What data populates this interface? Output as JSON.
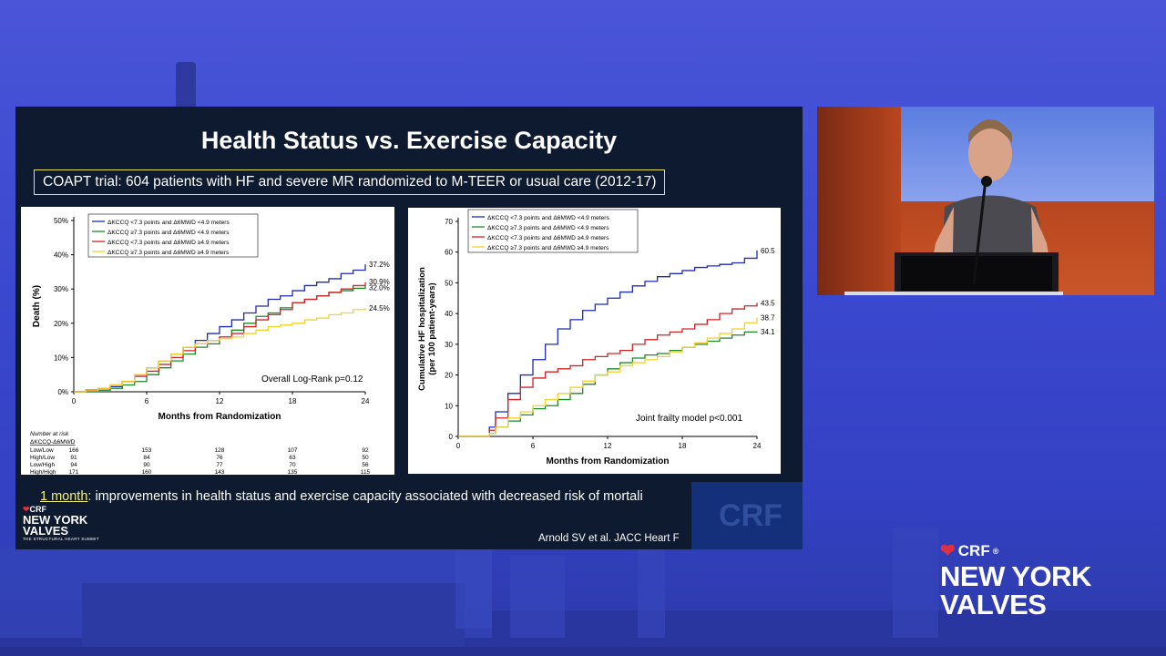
{
  "slide": {
    "title": "Health Status vs. Exercise Capacity",
    "subtitle": "COAPT trial: 604 patients with HF and severe MR randomized to M-TEER or usual care (2012-17)",
    "bottom_note_highlight": "1 month",
    "bottom_note_rest": ": improvements in health status and exercise capacity associated with decreased risk of mortali",
    "citation": "Arnold SV et al. JACC Heart F",
    "logo_crf": "CRF",
    "logo_name_line1": "NEW YORK",
    "logo_name_line2": "VALVES",
    "logo_tagline": "THE STRUCTURAL HEART SUMMIT",
    "watermark": "CRF"
  },
  "brand": {
    "crf": "CRF",
    "line1": "NEW YORK",
    "line2": "VALVES"
  },
  "colors": {
    "series": [
      "#1f2bb5",
      "#1e8a2a",
      "#d22424",
      "#f2d22e"
    ],
    "slide_bg": "#0e1a30",
    "accent_box": "#e3e35a"
  },
  "chart_data": [
    {
      "type": "line",
      "xlabel": "Months from Randomization",
      "ylabel": "Death (%)",
      "x_ticks": [
        0,
        6,
        12,
        18,
        24
      ],
      "y_ticks": [
        "0%",
        "10%",
        "20%",
        "30%",
        "40%",
        "50%"
      ],
      "xlim": [
        0,
        24
      ],
      "ylim": [
        0,
        50
      ],
      "annotation": "Overall Log-Rank p=0.12",
      "legend_position": "top-left",
      "series": [
        {
          "name": "ΔKCCQ <7.3 points and Δ6MWD <4.9 meters",
          "end_label": "37.2%",
          "points": [
            [
              0,
              0
            ],
            [
              1,
              0
            ],
            [
              2,
              0.5
            ],
            [
              3,
              1.5
            ],
            [
              4,
              3
            ],
            [
              5,
              5
            ],
            [
              6,
              7
            ],
            [
              7,
              9
            ],
            [
              8,
              11
            ],
            [
              9,
              13
            ],
            [
              10,
              15
            ],
            [
              11,
              17
            ],
            [
              12,
              19
            ],
            [
              13,
              21
            ],
            [
              14,
              23
            ],
            [
              15,
              25
            ],
            [
              16,
              27
            ],
            [
              17,
              28
            ],
            [
              18,
              29.5
            ],
            [
              19,
              31
            ],
            [
              20,
              32
            ],
            [
              21,
              33
            ],
            [
              22,
              34.5
            ],
            [
              23,
              35.5
            ],
            [
              24,
              37.2
            ]
          ]
        },
        {
          "name": "ΔKCCQ ≥7.3 points and Δ6MWD <4.9 meters",
          "end_label": "30.9%",
          "points": [
            [
              0,
              0
            ],
            [
              1,
              0
            ],
            [
              2,
              0.5
            ],
            [
              3,
              1
            ],
            [
              4,
              2
            ],
            [
              5,
              3
            ],
            [
              6,
              5
            ],
            [
              7,
              7
            ],
            [
              8,
              9
            ],
            [
              9,
              11
            ],
            [
              10,
              13
            ],
            [
              11,
              14
            ],
            [
              12,
              16
            ],
            [
              13,
              18
            ],
            [
              14,
              20
            ],
            [
              15,
              22
            ],
            [
              16,
              23
            ],
            [
              17,
              24.5
            ],
            [
              18,
              26
            ],
            [
              19,
              27
            ],
            [
              20,
              28
            ],
            [
              21,
              29
            ],
            [
              22,
              29.5
            ],
            [
              23,
              30.2
            ],
            [
              24,
              30.9
            ]
          ]
        },
        {
          "name": "ΔKCCQ <7.3 points and Δ6MWD ≥4.9 meters",
          "end_label": "32.0%",
          "points": [
            [
              0,
              0
            ],
            [
              1,
              0.5
            ],
            [
              2,
              1
            ],
            [
              3,
              2
            ],
            [
              4,
              3
            ],
            [
              5,
              4.5
            ],
            [
              6,
              6
            ],
            [
              7,
              8
            ],
            [
              8,
              10
            ],
            [
              9,
              12
            ],
            [
              10,
              14
            ],
            [
              11,
              15
            ],
            [
              12,
              16
            ],
            [
              13,
              17
            ],
            [
              14,
              19
            ],
            [
              15,
              21
            ],
            [
              16,
              22.5
            ],
            [
              17,
              24
            ],
            [
              18,
              26
            ],
            [
              19,
              27
            ],
            [
              20,
              28
            ],
            [
              21,
              29
            ],
            [
              22,
              30
            ],
            [
              23,
              31
            ],
            [
              24,
              32
            ]
          ]
        },
        {
          "name": "ΔKCCQ ≥7.3 points and Δ6MWD ≥4.9 meters",
          "end_label": "24.5%",
          "points": [
            [
              0,
              0
            ],
            [
              1,
              0.3
            ],
            [
              2,
              1
            ],
            [
              3,
              2
            ],
            [
              4,
              3
            ],
            [
              5,
              5
            ],
            [
              6,
              7
            ],
            [
              7,
              9
            ],
            [
              8,
              11
            ],
            [
              9,
              13
            ],
            [
              10,
              14
            ],
            [
              11,
              15
            ],
            [
              12,
              15.5
            ],
            [
              13,
              16
            ],
            [
              14,
              17
            ],
            [
              15,
              18
            ],
            [
              16,
              19
            ],
            [
              17,
              19.5
            ],
            [
              18,
              20
            ],
            [
              19,
              21
            ],
            [
              20,
              21.5
            ],
            [
              21,
              22.5
            ],
            [
              22,
              23
            ],
            [
              23,
              24
            ],
            [
              24,
              24.5
            ]
          ]
        }
      ],
      "risk_table": {
        "title": "Number at risk",
        "header": "ΔKCCQ-Δ6MWD",
        "rows": [
          {
            "label": "Low/Low",
            "values": [
              "166",
              "153",
              "128",
              "107",
              "92"
            ]
          },
          {
            "label": "High/Low",
            "values": [
              "91",
              "84",
              "76",
              "63",
              "50"
            ]
          },
          {
            "label": "Low/High",
            "values": [
              "94",
              "90",
              "77",
              "70",
              "56"
            ]
          },
          {
            "label": "High/High",
            "values": [
              "171",
              "160",
              "143",
              "135",
              "115"
            ]
          }
        ]
      }
    },
    {
      "type": "line",
      "xlabel": "Months from Randomization",
      "ylabel_line1": "Cumulative HF hospitalization",
      "ylabel_line2": "(per 100 patient-years)",
      "x_ticks": [
        0,
        6,
        12,
        18,
        24
      ],
      "y_ticks": [
        "0",
        "10",
        "20",
        "30",
        "40",
        "50",
        "60",
        "70"
      ],
      "xlim": [
        0,
        24
      ],
      "ylim": [
        0,
        70
      ],
      "annotation": "Joint frailty model p<0.001",
      "legend_position": "top-left",
      "series": [
        {
          "name": "ΔKCCQ <7.3 points and Δ6MWD <4.9 meters",
          "end_label": "60.5",
          "points": [
            [
              0,
              0
            ],
            [
              1,
              0
            ],
            [
              2,
              0
            ],
            [
              2.5,
              3
            ],
            [
              3,
              8
            ],
            [
              4,
              14
            ],
            [
              5,
              20
            ],
            [
              6,
              25
            ],
            [
              7,
              30
            ],
            [
              8,
              35
            ],
            [
              9,
              38
            ],
            [
              10,
              41
            ],
            [
              11,
              43
            ],
            [
              12,
              45
            ],
            [
              13,
              47
            ],
            [
              14,
              49
            ],
            [
              15,
              50.5
            ],
            [
              16,
              52
            ],
            [
              17,
              53
            ],
            [
              18,
              54
            ],
            [
              19,
              55
            ],
            [
              20,
              55.5
            ],
            [
              21,
              56
            ],
            [
              22,
              56.5
            ],
            [
              23,
              58
            ],
            [
              24,
              60.5
            ]
          ]
        },
        {
          "name": "ΔKCCQ ≥7.3 points and Δ6MWD <4.9 meters",
          "end_label": "34.1",
          "points": [
            [
              0,
              0
            ],
            [
              1,
              0
            ],
            [
              2,
              0
            ],
            [
              2.5,
              1
            ],
            [
              3,
              3
            ],
            [
              4,
              5
            ],
            [
              5,
              7
            ],
            [
              6,
              9
            ],
            [
              7,
              10
            ],
            [
              8,
              12
            ],
            [
              9,
              14
            ],
            [
              10,
              17
            ],
            [
              11,
              20
            ],
            [
              12,
              22
            ],
            [
              13,
              24
            ],
            [
              14,
              25.5
            ],
            [
              15,
              26.5
            ],
            [
              16,
              27
            ],
            [
              17,
              28
            ],
            [
              18,
              29
            ],
            [
              19,
              30
            ],
            [
              20,
              31
            ],
            [
              21,
              32
            ],
            [
              22,
              33
            ],
            [
              23,
              34
            ],
            [
              24,
              34.1
            ]
          ]
        },
        {
          "name": "ΔKCCQ <7.3 points and Δ6MWD ≥4.9 meters",
          "end_label": "43.5",
          "points": [
            [
              0,
              0
            ],
            [
              1,
              0
            ],
            [
              2,
              0
            ],
            [
              2.5,
              2
            ],
            [
              3,
              6
            ],
            [
              4,
              12
            ],
            [
              5,
              16
            ],
            [
              6,
              19
            ],
            [
              7,
              21
            ],
            [
              8,
              22
            ],
            [
              9,
              23
            ],
            [
              10,
              25
            ],
            [
              11,
              26
            ],
            [
              12,
              27
            ],
            [
              13,
              28
            ],
            [
              14,
              30
            ],
            [
              15,
              31.5
            ],
            [
              16,
              33
            ],
            [
              17,
              34
            ],
            [
              18,
              35
            ],
            [
              19,
              36.5
            ],
            [
              20,
              38
            ],
            [
              21,
              40
            ],
            [
              22,
              41.5
            ],
            [
              23,
              42.5
            ],
            [
              24,
              43.5
            ]
          ]
        },
        {
          "name": "ΔKCCQ ≥7.3 points and Δ6MWD ≥4.9 meters",
          "end_label": "38.7",
          "points": [
            [
              0,
              0
            ],
            [
              1,
              0
            ],
            [
              2,
              0
            ],
            [
              2.5,
              1
            ],
            [
              3,
              3
            ],
            [
              4,
              6
            ],
            [
              5,
              8
            ],
            [
              6,
              10
            ],
            [
              7,
              12
            ],
            [
              8,
              14
            ],
            [
              9,
              16
            ],
            [
              10,
              18
            ],
            [
              11,
              20
            ],
            [
              12,
              21
            ],
            [
              13,
              23
            ],
            [
              14,
              24
            ],
            [
              15,
              25
            ],
            [
              16,
              26
            ],
            [
              17,
              27.5
            ],
            [
              18,
              29
            ],
            [
              19,
              30.5
            ],
            [
              20,
              32
            ],
            [
              21,
              33.5
            ],
            [
              22,
              35
            ],
            [
              23,
              37
            ],
            [
              24,
              38.7
            ]
          ]
        }
      ]
    }
  ]
}
